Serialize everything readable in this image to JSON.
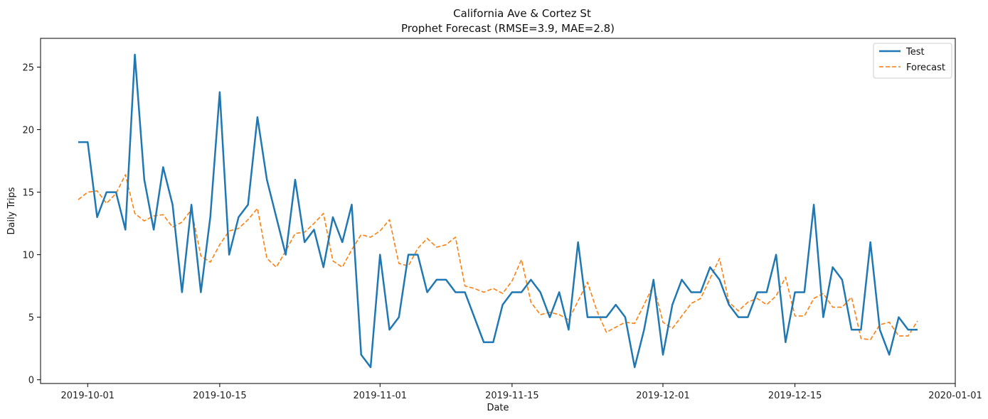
{
  "chart_data": {
    "type": "line",
    "title": "California Ave & Cortez St",
    "subtitle": "Prophet Forecast (RMSE=3.9, MAE=2.8)",
    "xlabel": "Date",
    "ylabel": "Daily Trips",
    "start_date": "2019-09-30",
    "xlim": [
      "2019-09-26",
      "2020-01-01"
    ],
    "ylim": [
      -0.3,
      27.3
    ],
    "x_ticks": [
      "2019-10-01",
      "2019-10-15",
      "2019-11-01",
      "2019-11-15",
      "2019-12-01",
      "2019-12-15",
      "2020-01-01"
    ],
    "y_ticks": [
      0,
      5,
      10,
      15,
      20,
      25
    ],
    "legend_position": "top-right",
    "series": [
      {
        "name": "Test",
        "style": "solid",
        "color": "#1f77b4",
        "values": [
          19,
          19,
          13,
          15,
          15,
          12,
          26,
          16,
          12,
          17,
          14,
          7,
          14,
          7,
          13,
          23,
          10,
          13,
          14,
          21,
          16,
          13,
          10,
          16,
          11,
          12,
          9,
          13,
          11,
          14,
          2,
          1,
          10,
          4,
          5,
          10,
          10,
          7,
          8,
          8,
          7,
          7,
          5,
          3,
          3,
          6,
          7,
          7,
          8,
          7,
          5,
          7,
          4,
          11,
          5,
          5,
          5,
          6,
          5,
          1,
          4,
          8,
          2,
          6,
          8,
          7,
          7,
          9,
          8,
          6,
          5,
          5,
          7,
          7,
          10,
          3,
          7,
          7,
          14,
          5,
          9,
          8,
          4,
          4,
          11,
          4,
          2,
          5,
          4,
          4
        ]
      },
      {
        "name": "Forecast",
        "style": "dashed",
        "color": "#ff7f0e",
        "values": [
          14.4,
          15.0,
          15.1,
          14.1,
          14.9,
          16.4,
          13.3,
          12.7,
          13.1,
          13.2,
          12.2,
          12.6,
          13.6,
          9.9,
          9.4,
          10.8,
          11.9,
          12.1,
          12.8,
          13.7,
          9.7,
          9.0,
          10.3,
          11.7,
          11.8,
          12.5,
          13.3,
          9.5,
          9.0,
          10.4,
          11.6,
          11.4,
          11.9,
          12.8,
          9.3,
          9.1,
          10.5,
          11.3,
          10.6,
          10.8,
          11.4,
          7.5,
          7.3,
          7.0,
          7.3,
          6.9,
          7.9,
          9.6,
          6.2,
          5.2,
          5.4,
          5.2,
          4.8,
          6.3,
          7.8,
          5.5,
          3.8,
          4.2,
          4.6,
          4.5,
          6.0,
          7.6,
          4.6,
          4.1,
          5.1,
          6.1,
          6.5,
          8.1,
          9.7,
          6.2,
          5.5,
          6.2,
          6.5,
          6.0,
          6.7,
          8.2,
          5.1,
          5.1,
          6.5,
          6.9,
          5.8,
          5.8,
          6.6,
          3.3,
          3.2,
          4.4,
          4.6,
          3.5,
          3.5,
          4.7
        ]
      }
    ]
  }
}
